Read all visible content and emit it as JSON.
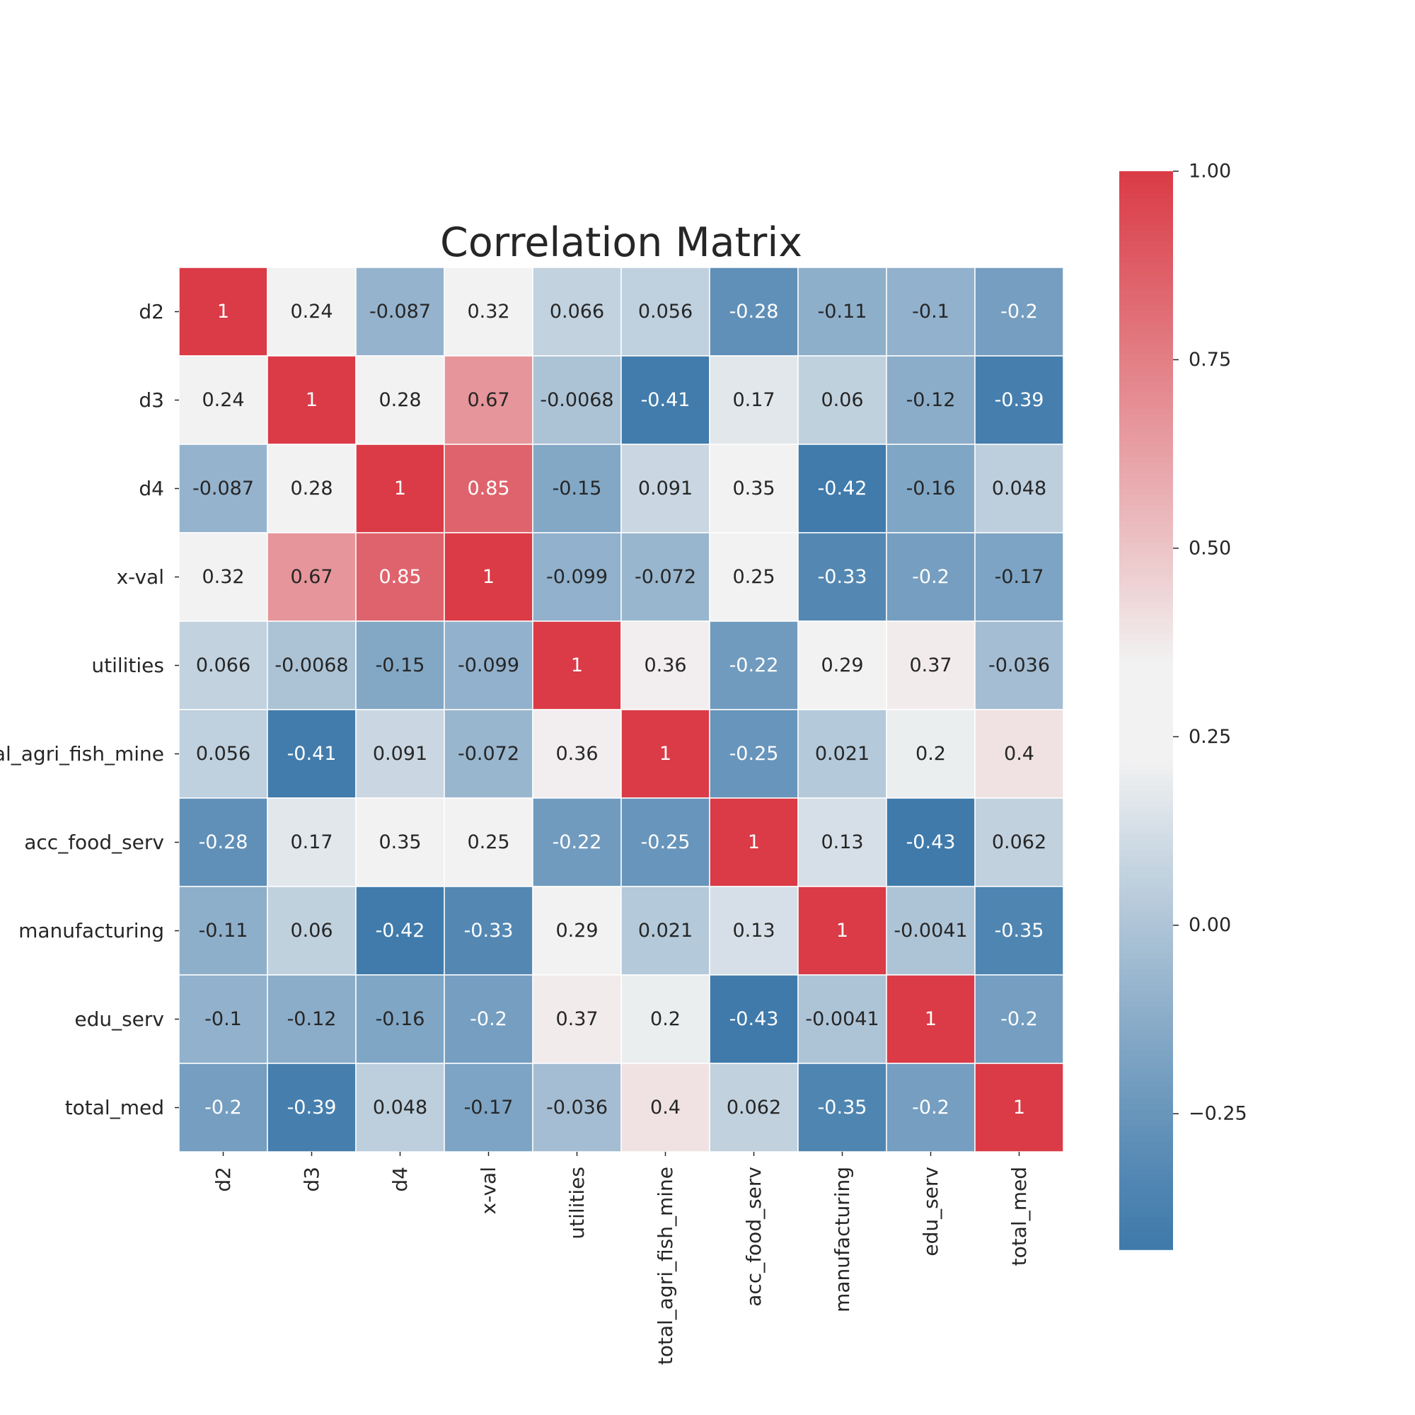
{
  "chart_data": {
    "type": "heatmap",
    "title": "Correlation Matrix",
    "row_labels": [
      "d2",
      "d3",
      "d4",
      "x-val",
      "utilities",
      "total_agri_fish_mine",
      "acc_food_serv",
      "manufacturing",
      "edu_serv",
      "total_med"
    ],
    "col_labels": [
      "d2",
      "d3",
      "d4",
      "x-val",
      "utilities",
      "total_agri_fish_mine",
      "acc_food_serv",
      "manufacturing",
      "edu_serv",
      "total_med"
    ],
    "values": [
      [
        1,
        0.24,
        -0.087,
        0.32,
        0.066,
        0.056,
        -0.28,
        -0.11,
        -0.1,
        -0.2
      ],
      [
        0.24,
        1,
        0.28,
        0.67,
        -0.0068,
        -0.41,
        0.17,
        0.06,
        -0.12,
        -0.39
      ],
      [
        -0.087,
        0.28,
        1,
        0.85,
        -0.15,
        0.091,
        0.35,
        -0.42,
        -0.16,
        0.048
      ],
      [
        0.32,
        0.67,
        0.85,
        1,
        -0.099,
        -0.072,
        0.25,
        -0.33,
        -0.2,
        -0.17
      ],
      [
        0.066,
        -0.0068,
        -0.15,
        -0.099,
        1,
        0.36,
        -0.22,
        0.29,
        0.37,
        -0.036
      ],
      [
        0.056,
        -0.41,
        0.091,
        -0.072,
        0.36,
        1,
        -0.25,
        0.021,
        0.2,
        0.4
      ],
      [
        -0.28,
        0.17,
        0.35,
        0.25,
        -0.22,
        -0.25,
        1,
        0.13,
        -0.43,
        0.062
      ],
      [
        -0.11,
        0.06,
        -0.42,
        -0.33,
        0.29,
        0.021,
        0.13,
        1,
        -0.0041,
        -0.35
      ],
      [
        -0.1,
        -0.12,
        -0.16,
        -0.2,
        0.37,
        0.2,
        -0.43,
        -0.0041,
        1,
        -0.2
      ],
      [
        -0.2,
        -0.39,
        0.048,
        -0.17,
        -0.036,
        0.4,
        0.062,
        -0.35,
        -0.2,
        1
      ]
    ],
    "annotations": [
      [
        "1",
        "0.24",
        "-0.087",
        "0.32",
        "0.066",
        "0.056",
        "-0.28",
        "-0.11",
        "-0.1",
        "-0.2"
      ],
      [
        "0.24",
        "1",
        "0.28",
        "0.67",
        "-0.0068",
        "-0.41",
        "0.17",
        "0.06",
        "-0.12",
        "-0.39"
      ],
      [
        "-0.087",
        "0.28",
        "1",
        "0.85",
        "-0.15",
        "0.091",
        "0.35",
        "-0.42",
        "-0.16",
        "0.048"
      ],
      [
        "0.32",
        "0.67",
        "0.85",
        "1",
        "-0.099",
        "-0.072",
        "0.25",
        "-0.33",
        "-0.2",
        "-0.17"
      ],
      [
        "0.066",
        "-0.0068",
        "-0.15",
        "-0.099",
        "1",
        "0.36",
        "-0.22",
        "0.29",
        "0.37",
        "-0.036"
      ],
      [
        "0.056",
        "-0.41",
        "0.091",
        "-0.072",
        "0.36",
        "1",
        "-0.25",
        "0.021",
        "0.2",
        "0.4"
      ],
      [
        "-0.28",
        "0.17",
        "0.35",
        "0.25",
        "-0.22",
        "-0.25",
        "1",
        "0.13",
        "-0.43",
        "0.062"
      ],
      [
        "-0.11",
        "0.06",
        "-0.42",
        "-0.33",
        "0.29",
        "0.021",
        "0.13",
        "1",
        "-0.0041",
        "-0.35"
      ],
      [
        "-0.1",
        "-0.12",
        "-0.16",
        "-0.2",
        "0.37",
        "0.2",
        "-0.43",
        "-0.0041",
        "1",
        "-0.2"
      ],
      [
        "-0.2",
        "-0.39",
        "0.048",
        "-0.17",
        "-0.036",
        "0.4",
        "0.062",
        "-0.35",
        "-0.2",
        "1"
      ]
    ],
    "colorbar": {
      "vmin": -0.43,
      "vmax": 1.0,
      "ticks": [
        1.0,
        0.75,
        0.5,
        0.25,
        0.0,
        -0.25
      ],
      "tick_labels": [
        "1.00",
        "0.75",
        "0.50",
        "0.25",
        "0.00",
        "−0.25"
      ],
      "colormap": "diverging blue-to-red",
      "colors": {
        "low": "#3f7aab",
        "mid": "#f2f2f2",
        "high": "#da3b46"
      }
    },
    "grid": false,
    "legend": "colorbar on the right"
  }
}
